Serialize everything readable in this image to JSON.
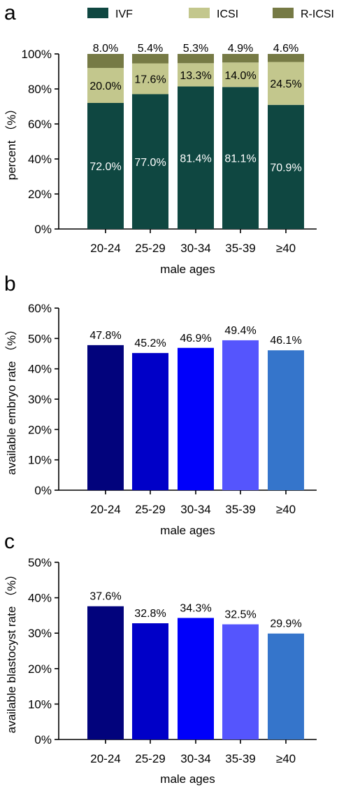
{
  "chart_data": [
    {
      "panel": "a",
      "type": "bar",
      "stacked": true,
      "categories": [
        "20-24",
        "25-29",
        "30-34",
        "35-39",
        "≥40"
      ],
      "xlabel": "male ages",
      "ylabel": "percent （%）",
      "ylim": [
        0,
        100
      ],
      "yticks": [
        "0%",
        "20%",
        "40%",
        "60%",
        "80%",
        "100%"
      ],
      "legend_position": "top",
      "series": [
        {
          "name": "IVF",
          "color": "#0f4741",
          "label_color": "#ffffff",
          "values": [
            72.0,
            77.0,
            81.4,
            81.1,
            70.9
          ],
          "labels": [
            "72.0%",
            "77.0%",
            "81.4%",
            "81.1%",
            "70.9%"
          ]
        },
        {
          "name": "ICSI",
          "color": "#c3c78d",
          "label_color": "#000000",
          "values": [
            20.0,
            17.6,
            13.3,
            14.0,
            24.5
          ],
          "labels": [
            "20.0%",
            "17.6%",
            "13.3%",
            "14.0%",
            "24.5%"
          ]
        },
        {
          "name": "R-ICSI",
          "color": "#767a45",
          "label_color": "#000000",
          "values": [
            8.0,
            5.4,
            5.3,
            4.9,
            4.6
          ],
          "labels": [
            "8.0%",
            "5.4%",
            "5.3%",
            "4.9%",
            "4.6%"
          ]
        }
      ]
    },
    {
      "panel": "b",
      "type": "bar",
      "categories": [
        "20-24",
        "25-29",
        "30-34",
        "35-39",
        "≥40"
      ],
      "values": [
        47.8,
        45.2,
        46.9,
        49.4,
        46.1
      ],
      "labels": [
        "47.8%",
        "45.2%",
        "46.9%",
        "49.4%",
        "46.1%"
      ],
      "colors": [
        "#02037c",
        "#0000c8",
        "#0000fa",
        "#5555fd",
        "#3575cb"
      ],
      "xlabel": "male ages",
      "ylabel": "available embryo rate （%）",
      "ylim": [
        0,
        60
      ],
      "yticks": [
        "0%",
        "10%",
        "20%",
        "30%",
        "40%",
        "50%",
        "60%"
      ]
    },
    {
      "panel": "c",
      "type": "bar",
      "categories": [
        "20-24",
        "25-29",
        "30-34",
        "35-39",
        "≥40"
      ],
      "values": [
        37.6,
        32.8,
        34.3,
        32.5,
        29.9
      ],
      "labels": [
        "37.6%",
        "32.8%",
        "34.3%",
        "32.5%",
        "29.9%"
      ],
      "colors": [
        "#02037c",
        "#0000c8",
        "#0000fa",
        "#5555fd",
        "#3575cb"
      ],
      "xlabel": "male ages",
      "ylabel": "available blastocyst rate （%）",
      "ylim": [
        0,
        50
      ],
      "yticks": [
        "0%",
        "10%",
        "20%",
        "30%",
        "40%",
        "50%"
      ]
    }
  ]
}
